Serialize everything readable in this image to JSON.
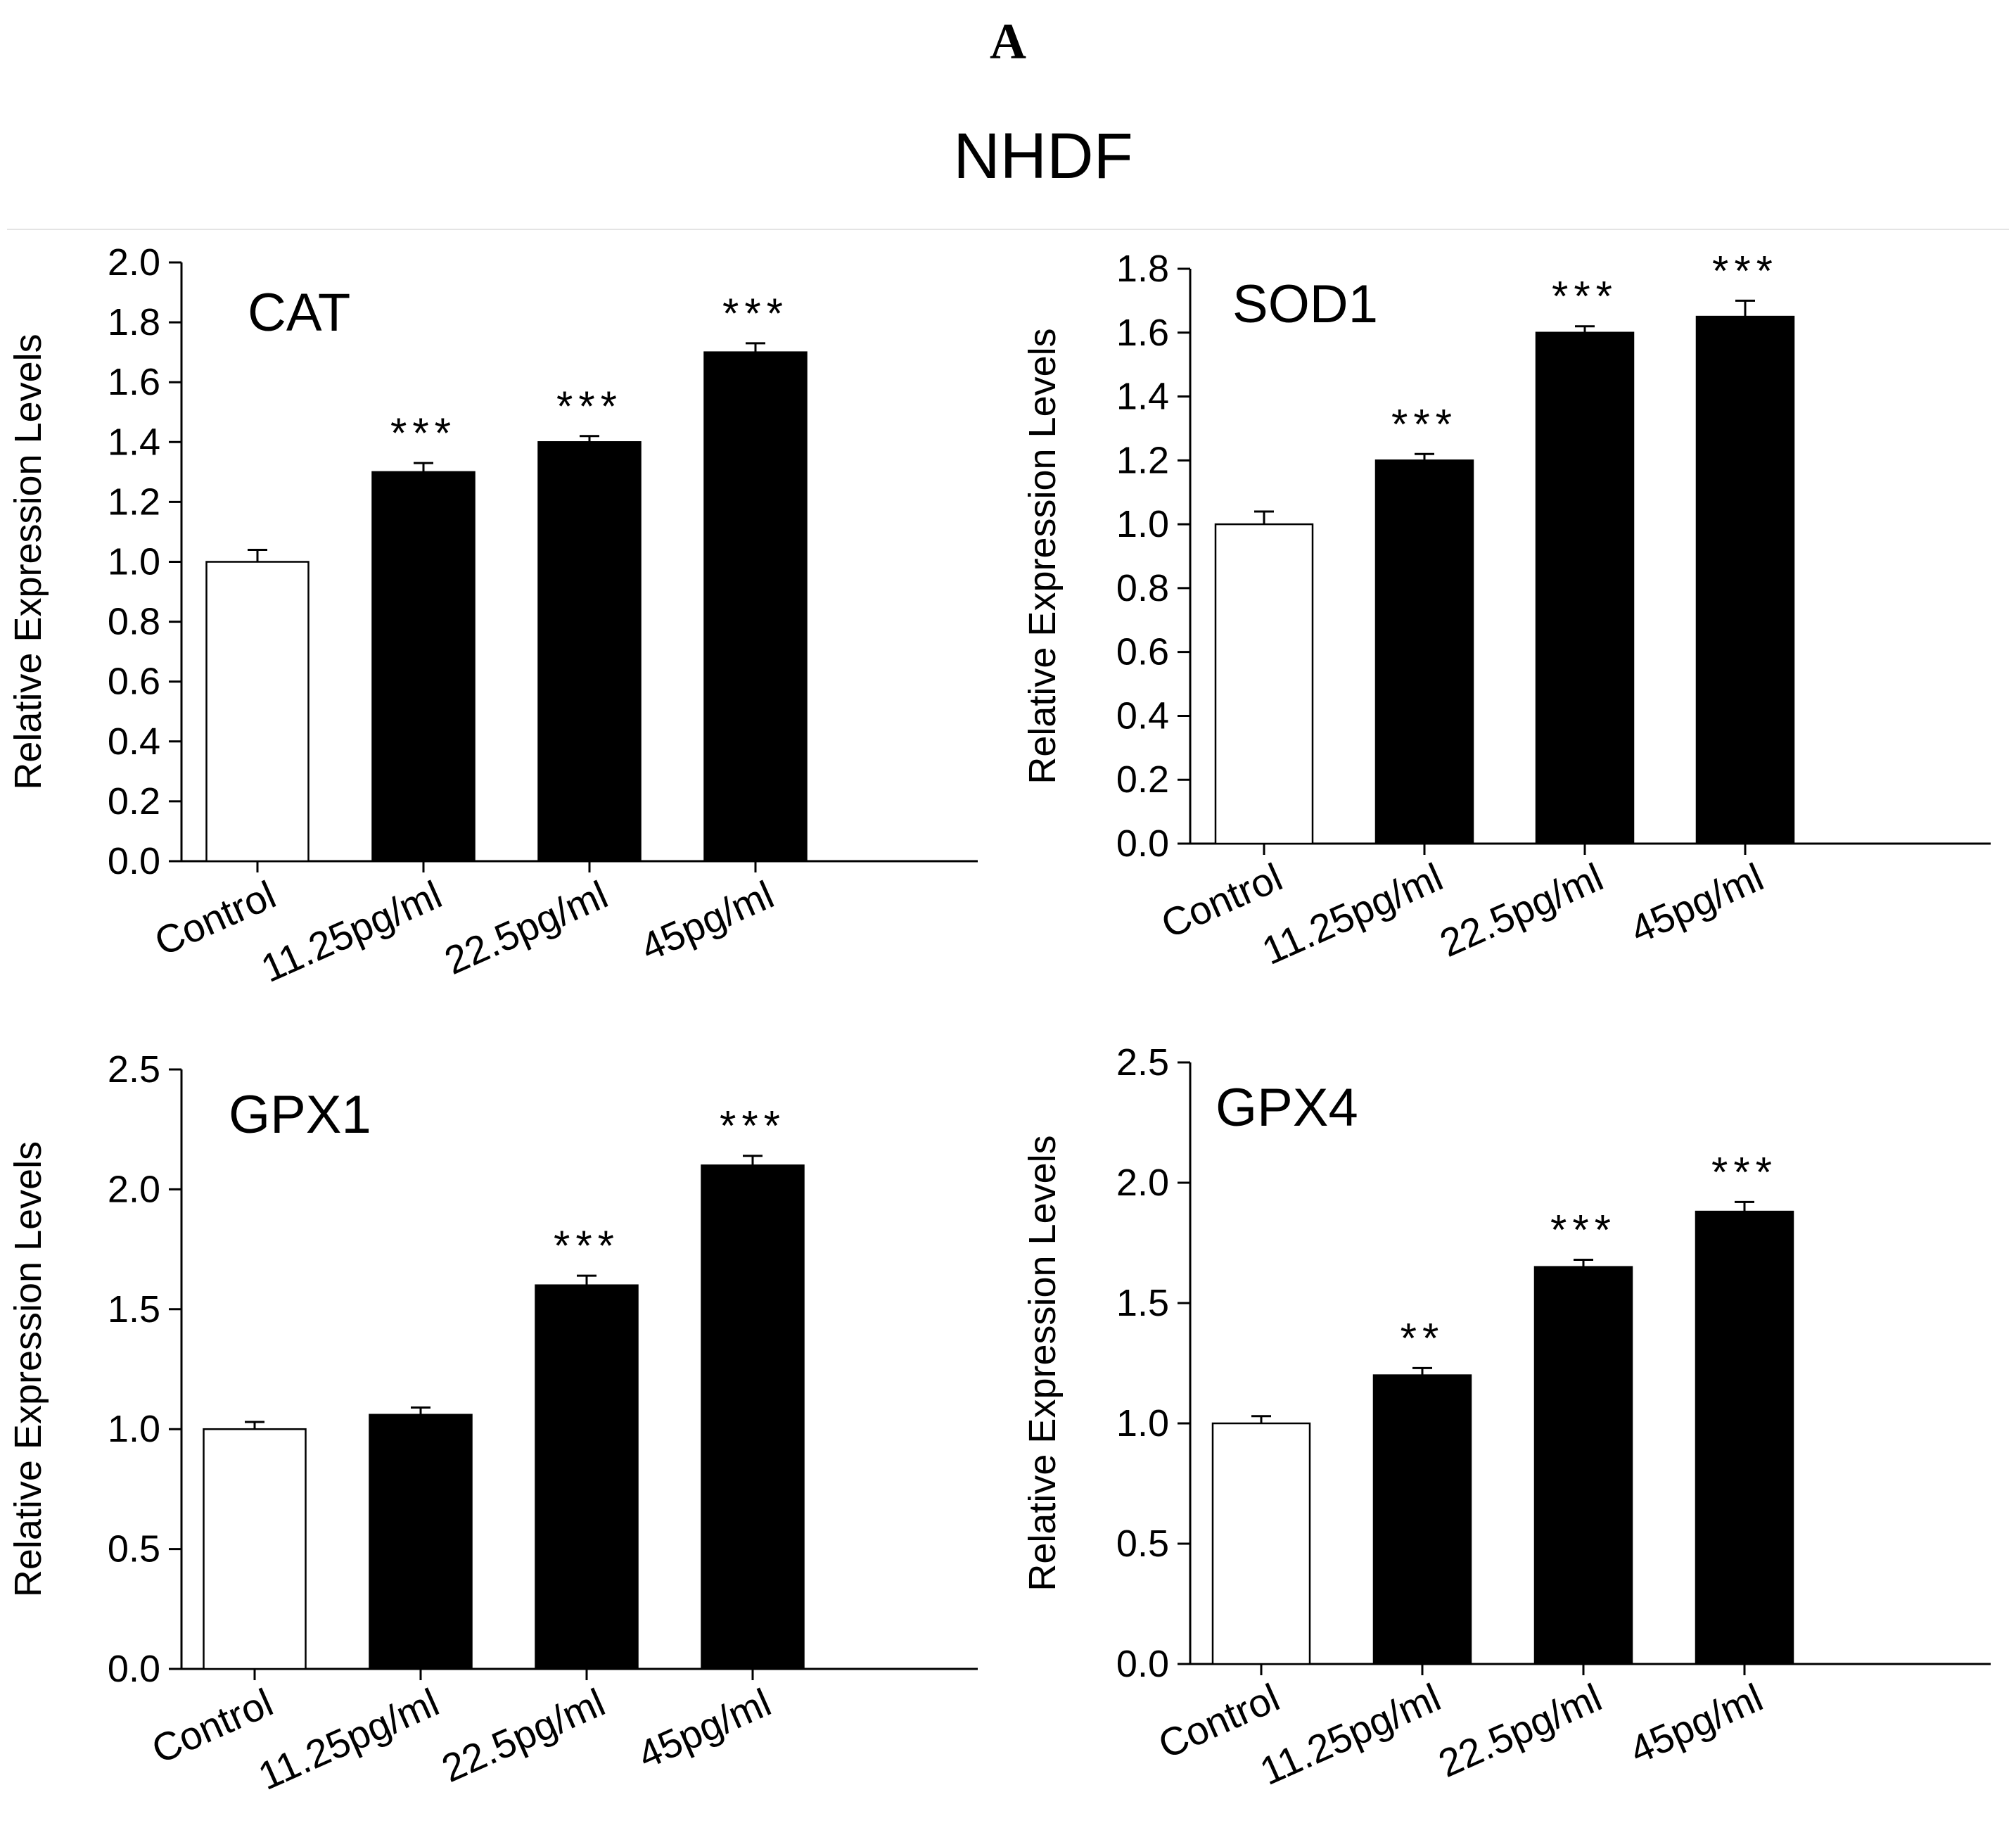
{
  "figure": {
    "panel_letter": "A",
    "title": "NHDF"
  },
  "chart_data": [
    {
      "type": "bar",
      "title": "CAT",
      "ylabel": "Relative Expression Levels",
      "xlabel": "",
      "categories": [
        "Control",
        "11.25pg/ml",
        "22.5pg/ml",
        "45pg/ml"
      ],
      "values": [
        1.0,
        1.3,
        1.4,
        1.7
      ],
      "errors": [
        0.04,
        0.03,
        0.02,
        0.03
      ],
      "significance": [
        "",
        "***",
        "***",
        "***"
      ],
      "bar_colors": [
        "#ffffff",
        "#000000",
        "#000000",
        "#000000"
      ],
      "ylim": [
        0,
        2.0
      ],
      "yticks": [
        "0.0",
        "0.2",
        "0.4",
        "0.6",
        "0.8",
        "1.0",
        "1.2",
        "1.4",
        "1.6",
        "1.8",
        "2.0"
      ],
      "grid": false
    },
    {
      "type": "bar",
      "title": "SOD1",
      "ylabel": "Relative Expression Levels",
      "xlabel": "",
      "categories": [
        "Control",
        "11.25pg/ml",
        "22.5pg/ml",
        "45pg/ml"
      ],
      "values": [
        1.0,
        1.2,
        1.6,
        1.65
      ],
      "errors": [
        0.04,
        0.02,
        0.02,
        0.05
      ],
      "significance": [
        "",
        "***",
        "***",
        "***"
      ],
      "bar_colors": [
        "#ffffff",
        "#000000",
        "#000000",
        "#000000"
      ],
      "ylim": [
        0,
        1.8
      ],
      "yticks": [
        "0.0",
        "0.2",
        "0.4",
        "0.6",
        "0.8",
        "1.0",
        "1.2",
        "1.4",
        "1.6",
        "1.8"
      ],
      "grid": false
    },
    {
      "type": "bar",
      "title": "GPX1",
      "ylabel": "Relative Expression Levels",
      "xlabel": "",
      "categories": [
        "Control",
        "11.25pg/ml",
        "22.5pg/ml",
        "45pg/ml"
      ],
      "values": [
        1.0,
        1.06,
        1.6,
        2.1
      ],
      "errors": [
        0.03,
        0.03,
        0.04,
        0.04
      ],
      "significance": [
        "",
        "",
        "***",
        "***"
      ],
      "bar_colors": [
        "#ffffff",
        "#000000",
        "#000000",
        "#000000"
      ],
      "ylim": [
        0,
        2.5
      ],
      "yticks": [
        "0.0",
        "0.5",
        "1.0",
        "1.5",
        "2.0",
        "2.5"
      ],
      "grid": false
    },
    {
      "type": "bar",
      "title": "GPX4",
      "ylabel": "Relative Expression Levels",
      "xlabel": "",
      "categories": [
        "Control",
        "11.25pg/ml",
        "22.5pg/ml",
        "45pg/ml"
      ],
      "values": [
        1.0,
        1.2,
        1.65,
        1.88
      ],
      "errors": [
        0.03,
        0.03,
        0.03,
        0.04
      ],
      "significance": [
        "",
        "**",
        "***",
        "***"
      ],
      "bar_colors": [
        "#ffffff",
        "#000000",
        "#000000",
        "#000000"
      ],
      "ylim": [
        0,
        2.5
      ],
      "yticks": [
        "0.0",
        "0.5",
        "1.0",
        "1.5",
        "2.0",
        "2.5"
      ],
      "grid": false
    }
  ]
}
